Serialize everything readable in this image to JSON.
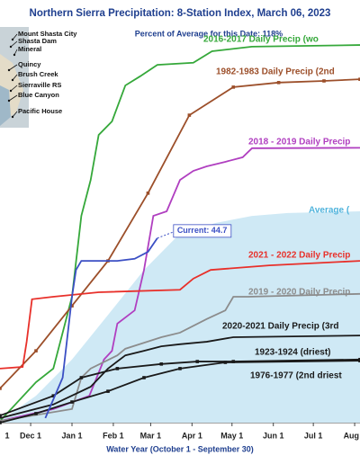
{
  "chart_data": {
    "type": "line",
    "title": "Northern Sierra Precipitation: 8-Station Index, March 06, 2023",
    "subtitle": "Percent of Average for this Date: 118%",
    "x_label": "Water Year (October 1 - September 30)",
    "stations": [
      "Mount Shasta City",
      "Shasta Dam",
      "Mineral",
      "Quincy",
      "Brush Creek",
      "Sierraville RS",
      "Blue Canyon",
      "Pacific House"
    ],
    "xlim": [
      38,
      308
    ],
    "ylim": [
      0,
      95
    ],
    "xticks": [
      {
        "value": 31,
        "label": "1"
      },
      {
        "value": 61,
        "label": "Dec 1"
      },
      {
        "value": 92,
        "label": "Jan 1"
      },
      {
        "value": 123,
        "label": "Feb 1"
      },
      {
        "value": 151,
        "label": "Mar 1"
      },
      {
        "value": 182,
        "label": "Apr 1"
      },
      {
        "value": 212,
        "label": "May 1"
      },
      {
        "value": 243,
        "label": "Jun 1"
      },
      {
        "value": 273,
        "label": "Jul 1"
      },
      {
        "value": 304,
        "label": "Aug 1"
      }
    ],
    "series": [
      {
        "name": "Average (",
        "color": "#cfe9f5",
        "fill": true,
        "x": [
          38,
          65,
          92,
          119,
          146,
          173,
          200,
          227,
          254,
          308
        ],
        "values": [
          0.4,
          6.5,
          15.3,
          26.1,
          37,
          45.8,
          48.4,
          50.1,
          50.8,
          51.2
        ]
      },
      {
        "name": "2016-2017 Daily Precip (wo",
        "color": "#35a83a",
        "x": [
          38,
          65,
          78,
          92,
          99,
          106,
          112,
          122,
          132,
          143,
          156,
          183,
          197,
          227,
          308
        ],
        "values": [
          0.4,
          9.8,
          13.1,
          30.5,
          50.1,
          58.8,
          69.7,
          73,
          81.7,
          83.9,
          86.7,
          87.2,
          90,
          91.1,
          91.5
        ]
      },
      {
        "name": "1982-1983 Daily Precip (2nd",
        "color": "#9c4f2a",
        "marker": "square",
        "x": [
          38,
          65,
          92,
          119,
          149,
          180,
          213,
          247,
          281,
          308
        ],
        "values": [
          8.3,
          17.4,
          28.3,
          39.2,
          55.6,
          74.5,
          81.3,
          82.4,
          82.8,
          83.2
        ]
      },
      {
        "name": "2018 - 2019 Daily Precip",
        "color": "#b03fc0",
        "x": [
          38,
          78,
          105,
          116,
          122,
          126,
          139,
          146,
          153,
          163,
          173,
          183,
          193,
          207,
          220,
          227,
          234,
          308
        ],
        "values": [
          0.4,
          3.3,
          6.5,
          15.3,
          17.4,
          24,
          27.2,
          37,
          50.1,
          51.2,
          58.8,
          61,
          62.1,
          63.2,
          64.3,
          66.5,
          66.5,
          66.6
        ]
      },
      {
        "name": "2021 - 2022 Daily Precip",
        "color": "#e8302a",
        "x": [
          38,
          55,
          58,
          62,
          78,
          112,
          173,
          183,
          196,
          240,
          308
        ],
        "values": [
          13.1,
          13.5,
          19.6,
          29.9,
          30.5,
          31.6,
          32.2,
          34.9,
          37,
          38.1,
          39.2
        ]
      },
      {
        "name": "2019 - 2020 Daily Precip",
        "color": "#8c8c8c",
        "x": [
          38,
          92,
          99,
          106,
          126,
          132,
          159,
          173,
          193,
          207,
          213,
          224,
          308
        ],
        "values": [
          0.4,
          3.3,
          10.9,
          13.1,
          16.3,
          17.9,
          20.7,
          21.8,
          25.1,
          27.2,
          30.5,
          30.5,
          31.2
        ]
      },
      {
        "name": "2020-2021 Daily Precip (3rd",
        "color": "#1a1a1a",
        "x": [
          38,
          78,
          106,
          119,
          132,
          146,
          159,
          173,
          193,
          213,
          308
        ],
        "values": [
          1.1,
          4.4,
          8.7,
          13.1,
          16.3,
          17.4,
          18.5,
          19,
          19.6,
          20.7,
          21.1
        ]
      },
      {
        "name": "1923-1924 (driest)",
        "color": "#1a1a1a",
        "marker": "square",
        "x": [
          38,
          78,
          99,
          126,
          159,
          186,
          213,
          308
        ],
        "values": [
          1.7,
          6.5,
          10.9,
          13.1,
          14.2,
          14.8,
          14.8,
          15.3
        ]
      },
      {
        "name": "1976-1977 (2nd driest",
        "color": "#1a1a1a",
        "marker": "square",
        "x": [
          38,
          65,
          92,
          119,
          146,
          173,
          207,
          308
        ],
        "values": [
          0,
          2.2,
          5,
          7.6,
          10.9,
          13.1,
          14.6,
          15
        ]
      },
      {
        "color": "#3b4fc4",
        "x": [
          72,
          85,
          92,
          95,
          99,
          112,
          126,
          139,
          149,
          156
        ],
        "values": [
          1.1,
          10.9,
          30.5,
          37,
          39.2,
          39.2,
          39.2,
          39.7,
          41.4,
          44.7
        ],
        "value_labels": [
          null,
          null,
          null,
          null,
          null,
          null,
          null,
          null,
          null,
          "Current: 44.7"
        ]
      }
    ]
  }
}
